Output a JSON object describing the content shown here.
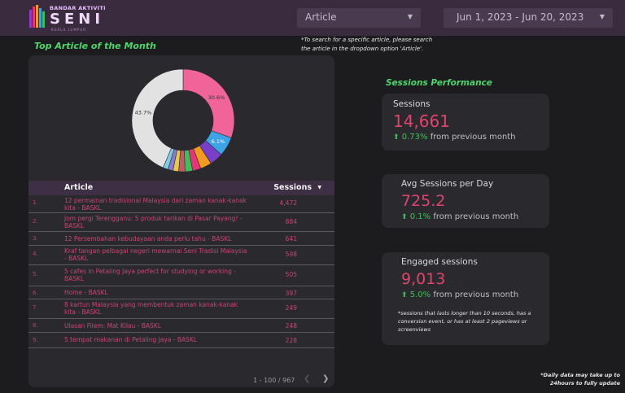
{
  "header": {
    "logo_small": "BANDAR AKTIVITI",
    "logo_big": "SENI",
    "logo_sub": "KUALA LUMPUR",
    "article_dropdown": "Article",
    "date_range": "Jun 1, 2023 - Jun 20, 2023"
  },
  "hint": "*To search for a specific article, please search the article in the dropdown option 'Article'.",
  "top_articles": {
    "title": "Top Article of the Month",
    "donut": {
      "slices": [
        {
          "label": "30.6%",
          "value": 30.6,
          "color": "#f0649a"
        },
        {
          "label": "6.1%",
          "value": 6.1,
          "color": "#3ba3e6"
        },
        {
          "label": "",
          "value": 4.2,
          "color": "#7a3fc8"
        },
        {
          "label": "",
          "value": 3.6,
          "color": "#f29a1d"
        },
        {
          "label": "",
          "value": 2.6,
          "color": "#e8357a"
        },
        {
          "label": "",
          "value": 2.4,
          "color": "#3fbf5a"
        },
        {
          "label": "",
          "value": 2.0,
          "color": "#c25a6a"
        },
        {
          "label": "",
          "value": 1.8,
          "color": "#e6c84a"
        },
        {
          "label": "",
          "value": 1.6,
          "color": "#8a7ad8"
        },
        {
          "label": "",
          "value": 1.6,
          "color": "#7fcde0"
        },
        {
          "label": "43.7%",
          "value": 43.7,
          "color": "#e2e2e2"
        }
      ]
    },
    "columns": {
      "article": "Article",
      "sessions": "Sessions"
    },
    "rows": [
      {
        "num": "1.",
        "article": "12 permainan tradisional Malaysia dari zaman kanak-kanak kita - BASKL",
        "sessions": "4,472"
      },
      {
        "num": "2.",
        "article": "Jom pergi Terengganu: 5 produk tarikan di Pasar Payang! - BASKL",
        "sessions": "884"
      },
      {
        "num": "3.",
        "article": "12 Persembahan kebudayaan anda perlu tahu - BASKL",
        "sessions": "641"
      },
      {
        "num": "4.",
        "article": "Kraf tangan pelbagai negeri mewarnai Seni Tradisi Malaysia - BASKL",
        "sessions": "598"
      },
      {
        "num": "5.",
        "article": "5 cafes in Petaling Jaya perfect for studying or working - BASKL",
        "sessions": "505"
      },
      {
        "num": "6.",
        "article": "Home - BASKL",
        "sessions": "397"
      },
      {
        "num": "7.",
        "article": "8 kartun Malaysia yang membentuk zaman kanak-kanak kita - BASKL",
        "sessions": "249"
      },
      {
        "num": "8.",
        "article": "Ulasan Filem: Mat Kilau - BASKL",
        "sessions": "248"
      },
      {
        "num": "9.",
        "article": "5 tempat makanan di Petaling Jaya - BASKL",
        "sessions": "228"
      }
    ],
    "pager": "1 - 100 / 967"
  },
  "performance": {
    "title": "Sessions Performance",
    "sessions": {
      "label": "Sessions",
      "value": "14,661",
      "pct": "0.73%",
      "suffix": "from previous month"
    },
    "avg": {
      "label": "Avg Sessions per Day",
      "value": "725.2",
      "pct": "0.1%",
      "suffix": "from previous month"
    },
    "engaged": {
      "label": "Engaged sessions",
      "value": "9,013",
      "pct": "5.0%",
      "suffix": "from previous month",
      "note": "*sessions that lasts longer than 10 seconds, has a conversion event, or has at least 2 pageviews or screenviews"
    }
  },
  "footer_note": "*Daily data may take up to 24hours to fully update"
}
